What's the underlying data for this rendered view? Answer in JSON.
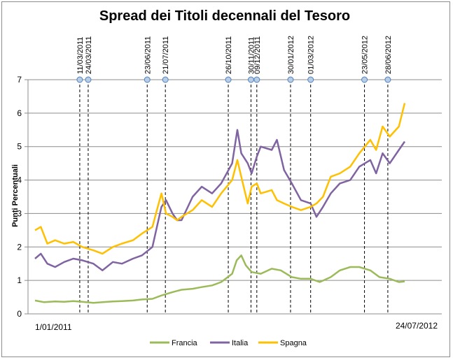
{
  "chart_data": {
    "type": "line",
    "title": "Spread dei Titoli decennali del Tesoro",
    "ylabel": "Punti Percentuali",
    "xlabel": "",
    "x_start_label": "1/01/2011",
    "x_end_label": "24/07/2012",
    "x_range": [
      "2011-01-01",
      "2012-07-24"
    ],
    "ylim": [
      0,
      7
    ],
    "yticks": [
      "0",
      "1",
      "2",
      "3",
      "4",
      "5",
      "6",
      "7"
    ],
    "grid": true,
    "legend_position": "bottom",
    "events": [
      "11/03/2011",
      "24/03/2011",
      "23/06/2011",
      "21/07/2011",
      "26/10/2011",
      "30/11/2011",
      "09/12/2011",
      "30/01/2012",
      "01/03/2012",
      "23/05/2012",
      "28/06/2012"
    ],
    "series": [
      {
        "name": "Francia",
        "color": "#9bbb59",
        "dates": [
          "2011-01-01",
          "2011-01-15",
          "2011-02-01",
          "2011-02-15",
          "2011-03-01",
          "2011-03-15",
          "2011-04-01",
          "2011-04-15",
          "2011-05-01",
          "2011-05-15",
          "2011-06-01",
          "2011-06-15",
          "2011-07-01",
          "2011-07-15",
          "2011-08-01",
          "2011-08-15",
          "2011-09-01",
          "2011-09-15",
          "2011-10-01",
          "2011-10-15",
          "2011-11-01",
          "2011-11-08",
          "2011-11-15",
          "2011-11-22",
          "2011-12-01",
          "2011-12-15",
          "2012-01-01",
          "2012-01-15",
          "2012-02-01",
          "2012-02-15",
          "2012-03-01",
          "2012-03-15",
          "2012-04-01",
          "2012-04-15",
          "2012-05-01",
          "2012-05-15",
          "2012-06-01",
          "2012-06-15",
          "2012-07-01",
          "2012-07-15",
          "2012-07-24"
        ],
        "values": [
          0.4,
          0.35,
          0.37,
          0.36,
          0.38,
          0.36,
          0.33,
          0.35,
          0.37,
          0.38,
          0.4,
          0.43,
          0.45,
          0.55,
          0.65,
          0.72,
          0.75,
          0.8,
          0.85,
          0.95,
          1.2,
          1.6,
          1.75,
          1.45,
          1.25,
          1.2,
          1.35,
          1.3,
          1.1,
          1.05,
          1.05,
          0.95,
          1.1,
          1.3,
          1.4,
          1.4,
          1.3,
          1.1,
          1.05,
          0.95,
          0.97
        ]
      },
      {
        "name": "Italia",
        "color": "#8064a2",
        "dates": [
          "2011-01-01",
          "2011-01-10",
          "2011-01-20",
          "2011-02-01",
          "2011-02-15",
          "2011-03-01",
          "2011-03-15",
          "2011-04-01",
          "2011-04-15",
          "2011-05-01",
          "2011-05-15",
          "2011-06-01",
          "2011-06-15",
          "2011-07-01",
          "2011-07-08",
          "2011-07-15",
          "2011-07-22",
          "2011-08-01",
          "2011-08-08",
          "2011-08-15",
          "2011-09-01",
          "2011-09-15",
          "2011-10-01",
          "2011-10-15",
          "2011-11-01",
          "2011-11-09",
          "2011-11-15",
          "2011-11-25",
          "2011-12-01",
          "2011-12-09",
          "2011-12-15",
          "2012-01-01",
          "2012-01-09",
          "2012-01-20",
          "2012-02-01",
          "2012-02-15",
          "2012-03-01",
          "2012-03-10",
          "2012-03-20",
          "2012-04-01",
          "2012-04-15",
          "2012-05-01",
          "2012-05-15",
          "2012-06-01",
          "2012-06-10",
          "2012-06-20",
          "2012-07-01",
          "2012-07-15",
          "2012-07-24"
        ],
        "values": [
          1.65,
          1.8,
          1.5,
          1.4,
          1.55,
          1.65,
          1.6,
          1.5,
          1.3,
          1.55,
          1.5,
          1.65,
          1.75,
          2.0,
          2.6,
          3.2,
          3.4,
          3.0,
          2.8,
          2.8,
          3.5,
          3.8,
          3.6,
          3.9,
          4.5,
          5.5,
          4.8,
          4.5,
          4.2,
          4.7,
          5.0,
          4.9,
          5.2,
          4.3,
          3.9,
          3.4,
          3.3,
          2.9,
          3.2,
          3.6,
          3.9,
          4.0,
          4.4,
          4.6,
          4.2,
          4.8,
          4.5,
          4.9,
          5.15
        ]
      },
      {
        "name": "Spagna",
        "color": "#ffc000",
        "dates": [
          "2011-01-01",
          "2011-01-10",
          "2011-01-20",
          "2011-02-01",
          "2011-02-15",
          "2011-03-01",
          "2011-03-15",
          "2011-04-01",
          "2011-04-15",
          "2011-05-01",
          "2011-05-15",
          "2011-06-01",
          "2011-06-15",
          "2011-07-01",
          "2011-07-08",
          "2011-07-15",
          "2011-07-22",
          "2011-08-01",
          "2011-08-08",
          "2011-08-15",
          "2011-09-01",
          "2011-09-15",
          "2011-10-01",
          "2011-10-15",
          "2011-11-01",
          "2011-11-09",
          "2011-11-15",
          "2011-11-25",
          "2011-12-01",
          "2011-12-09",
          "2011-12-15",
          "2012-01-01",
          "2012-01-09",
          "2012-01-20",
          "2012-02-01",
          "2012-02-15",
          "2012-03-01",
          "2012-03-10",
          "2012-03-20",
          "2012-04-01",
          "2012-04-15",
          "2012-05-01",
          "2012-05-15",
          "2012-06-01",
          "2012-06-10",
          "2012-06-20",
          "2012-07-01",
          "2012-07-15",
          "2012-07-24"
        ],
        "values": [
          2.5,
          2.6,
          2.1,
          2.2,
          2.1,
          2.15,
          2.0,
          1.9,
          1.8,
          2.0,
          2.1,
          2.2,
          2.4,
          2.6,
          3.1,
          3.6,
          3.0,
          2.9,
          2.8,
          2.9,
          3.1,
          3.4,
          3.2,
          3.6,
          4.0,
          4.6,
          4.1,
          3.3,
          3.8,
          3.9,
          3.6,
          3.7,
          3.4,
          3.3,
          3.2,
          3.1,
          3.2,
          3.3,
          3.5,
          4.1,
          4.2,
          4.4,
          4.8,
          5.2,
          4.9,
          5.6,
          5.3,
          5.6,
          6.3
        ]
      }
    ]
  }
}
